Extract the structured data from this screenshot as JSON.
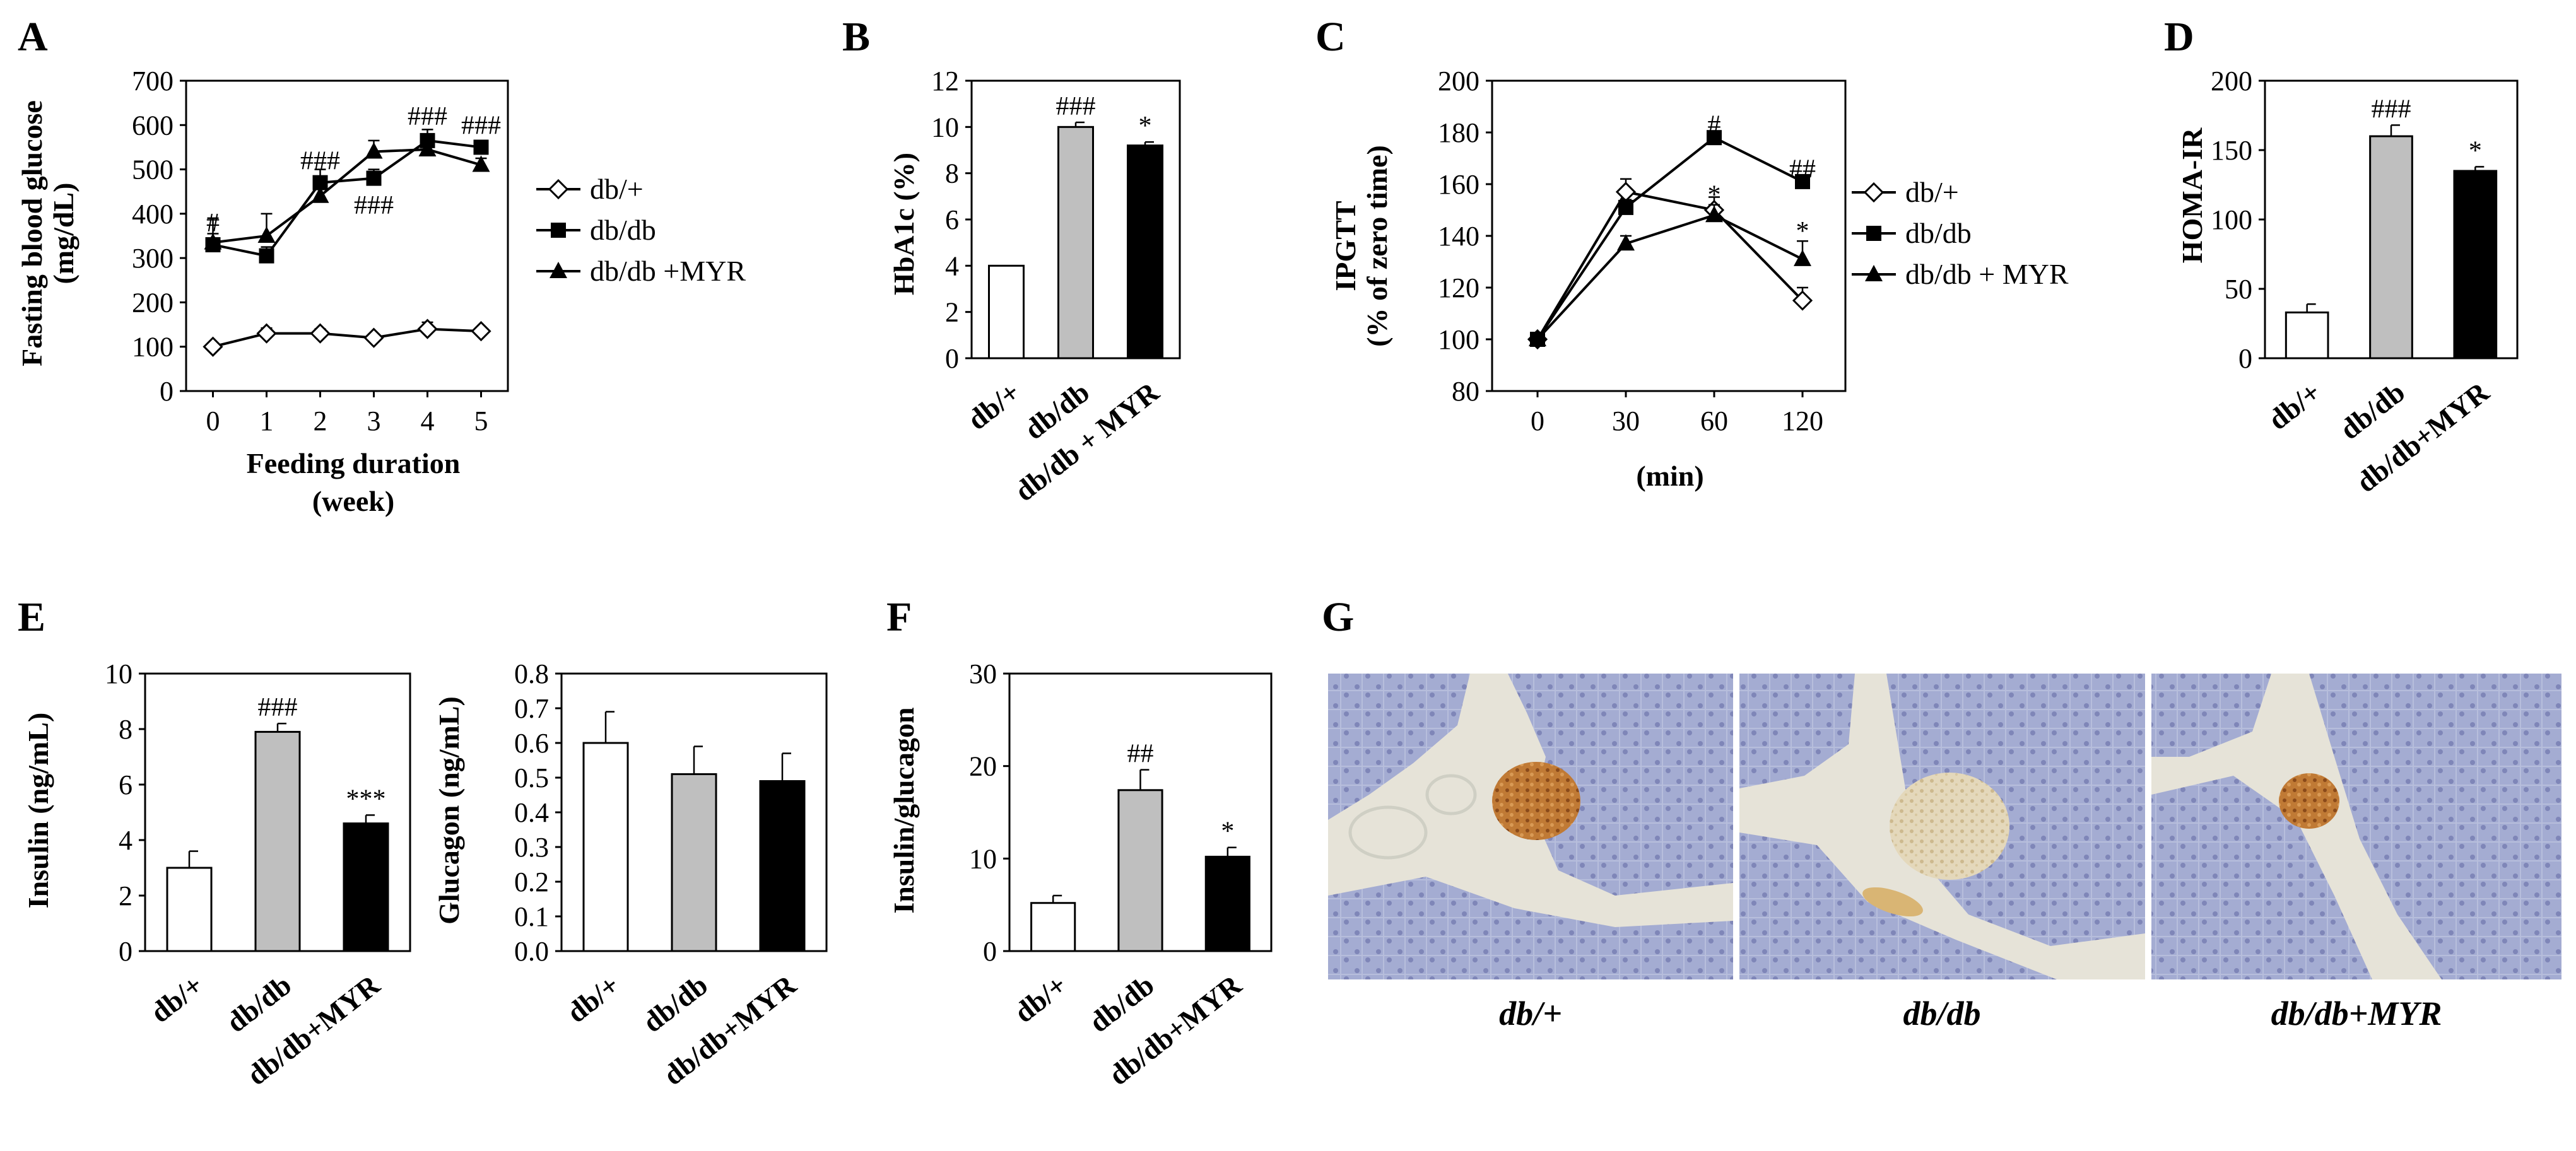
{
  "panels": [
    {
      "letter": "A",
      "title": "",
      "xlabel": [
        "Feeding duration",
        "(week)"
      ],
      "ylabel": [
        "Fasting blood glucose",
        "(mg/dL)"
      ]
    },
    {
      "letter": "B",
      "title": "",
      "ylabel": [
        "HbA1c (%)"
      ]
    },
    {
      "letter": "C",
      "title": "",
      "xlabel": [
        "(min)"
      ],
      "ylabel": [
        "IPGTT",
        "(% of zero time)"
      ]
    },
    {
      "letter": "D",
      "title": "",
      "ylabel": [
        "HOMA-IR"
      ]
    },
    {
      "letter": "E",
      "title": "",
      "ylabel": [
        "Insulin (ng/mL)"
      ]
    },
    {
      "letter": "",
      "title": "",
      "ylabel": [
        "Glucagon (ng/mL)"
      ]
    },
    {
      "letter": "F",
      "title": "",
      "ylabel": [
        "Insulin/glucagon"
      ]
    },
    {
      "letter": "G",
      "title": "",
      "ylabel": []
    }
  ],
  "histology": {
    "captions": [
      "db/+",
      "db/db",
      "db/db+MYR"
    ],
    "colors": {
      "tissue": "#a4acd2",
      "tissue_dark": "#8e96c4",
      "background": "#e6e3d8",
      "stain": "#b0652a"
    }
  },
  "chart_data": [
    {
      "panel": "A",
      "type": "line",
      "x": [
        0,
        1,
        2,
        3,
        4,
        5
      ],
      "xticks": [
        "0",
        "1",
        "2",
        "3",
        "4",
        "5"
      ],
      "ylim": [
        0,
        700
      ],
      "yticks": [
        0,
        100,
        200,
        300,
        400,
        500,
        600,
        700
      ],
      "legend_position": "right",
      "series": [
        {
          "name": "db/+",
          "marker": "open-diamond",
          "values": [
            100,
            130,
            130,
            120,
            140,
            135
          ],
          "errors": [
            8,
            12,
            10,
            8,
            15,
            8
          ]
        },
        {
          "name": "db/db",
          "marker": "filled-square",
          "values": [
            330,
            305,
            470,
            480,
            565,
            550
          ],
          "errors": [
            60,
            20,
            30,
            20,
            25,
            15
          ]
        },
        {
          "name": "db/db +MYR",
          "marker": "filled-triangle",
          "values": [
            335,
            350,
            440,
            540,
            545,
            510
          ],
          "errors": [
            20,
            50,
            20,
            25,
            20,
            15
          ]
        }
      ],
      "annotations": [
        {
          "text": "#",
          "x": 0,
          "y": 380
        },
        {
          "text": "###",
          "x": 2,
          "y": 520
        },
        {
          "text": "###",
          "x": 3,
          "y": 420
        },
        {
          "text": "###",
          "x": 4,
          "y": 620
        },
        {
          "text": "###",
          "x": 5,
          "y": 600
        }
      ]
    },
    {
      "panel": "B",
      "type": "bar",
      "categories": [
        "db/+",
        "db/db",
        "db/db + MYR"
      ],
      "values": [
        4.0,
        10.0,
        9.2
      ],
      "errors": [
        0,
        0.2,
        0.15
      ],
      "colors": [
        "#ffffff",
        "#bfbfbf",
        "#000000"
      ],
      "ylim": [
        0,
        12
      ],
      "yticks": [
        0,
        2,
        4,
        6,
        8,
        10,
        12
      ],
      "annotations": [
        {
          "text": "###",
          "category": 1
        },
        {
          "text": "*",
          "category": 2
        }
      ]
    },
    {
      "panel": "C",
      "type": "line",
      "x": [
        0,
        30,
        60,
        120
      ],
      "xticks": [
        "0",
        "30",
        "60",
        "120"
      ],
      "ylim": [
        80,
        200
      ],
      "yticks": [
        80,
        100,
        120,
        140,
        160,
        180,
        200
      ],
      "legend_position": "right",
      "series": [
        {
          "name": "db/+",
          "marker": "open-diamond",
          "values": [
            100,
            157,
            150,
            115
          ],
          "errors": [
            2,
            5,
            5,
            5
          ]
        },
        {
          "name": "db/db",
          "marker": "filled-square",
          "values": [
            100,
            151,
            178,
            161
          ],
          "errors": [
            2,
            3,
            2,
            2
          ]
        },
        {
          "name": "db/db + MYR",
          "marker": "filled-triangle",
          "values": [
            100,
            137,
            148,
            131
          ],
          "errors": [
            2,
            3,
            4,
            7
          ]
        }
      ],
      "annotations": [
        {
          "text": "#",
          "x": 60,
          "y": 183
        },
        {
          "text": "*",
          "x": 60,
          "y": 156
        },
        {
          "text": "##",
          "x": 120,
          "y": 166
        },
        {
          "text": "*",
          "x": 120,
          "y": 142
        }
      ]
    },
    {
      "panel": "D",
      "type": "bar",
      "categories": [
        "db/+",
        "db/db",
        "db/db+MYR"
      ],
      "values": [
        33,
        160,
        135
      ],
      "errors": [
        6,
        8,
        3
      ],
      "colors": [
        "#ffffff",
        "#bfbfbf",
        "#000000"
      ],
      "ylim": [
        0,
        200
      ],
      "yticks": [
        0,
        50,
        100,
        150,
        200
      ],
      "annotations": [
        {
          "text": "###",
          "category": 1
        },
        {
          "text": "*",
          "category": 2
        }
      ]
    },
    {
      "panel": "E",
      "type": "bar",
      "categories": [
        "db/+",
        "db/db",
        "db/db+MYR"
      ],
      "values": [
        3.0,
        7.9,
        4.6
      ],
      "errors": [
        0.6,
        0.3,
        0.3
      ],
      "colors": [
        "#ffffff",
        "#bfbfbf",
        "#000000"
      ],
      "ylim": [
        0,
        10
      ],
      "yticks": [
        0,
        2,
        4,
        6,
        8,
        10
      ],
      "annotations": [
        {
          "text": "###",
          "category": 1
        },
        {
          "text": "***",
          "category": 2
        }
      ]
    },
    {
      "panel": "E2",
      "type": "bar",
      "categories": [
        "db/+",
        "db/db",
        "db/db+MYR"
      ],
      "values": [
        0.6,
        0.51,
        0.49
      ],
      "errors": [
        0.09,
        0.08,
        0.08
      ],
      "colors": [
        "#ffffff",
        "#bfbfbf",
        "#000000"
      ],
      "ylim": [
        0,
        0.8
      ],
      "yticks": [
        "0.0",
        "0.1",
        "0.2",
        "0.3",
        "0.4",
        "0.5",
        "0.6",
        "0.7",
        "0.8"
      ],
      "annotations": []
    },
    {
      "panel": "F",
      "type": "bar",
      "categories": [
        "db/+",
        "db/db",
        "db/db+MYR"
      ],
      "values": [
        5.2,
        17.4,
        10.2
      ],
      "errors": [
        0.8,
        2.2,
        1.0
      ],
      "colors": [
        "#ffffff",
        "#bfbfbf",
        "#000000"
      ],
      "ylim": [
        0,
        30
      ],
      "yticks": [
        0,
        10,
        20,
        30
      ],
      "annotations": [
        {
          "text": "##",
          "category": 1
        },
        {
          "text": "*",
          "category": 2
        }
      ]
    }
  ]
}
